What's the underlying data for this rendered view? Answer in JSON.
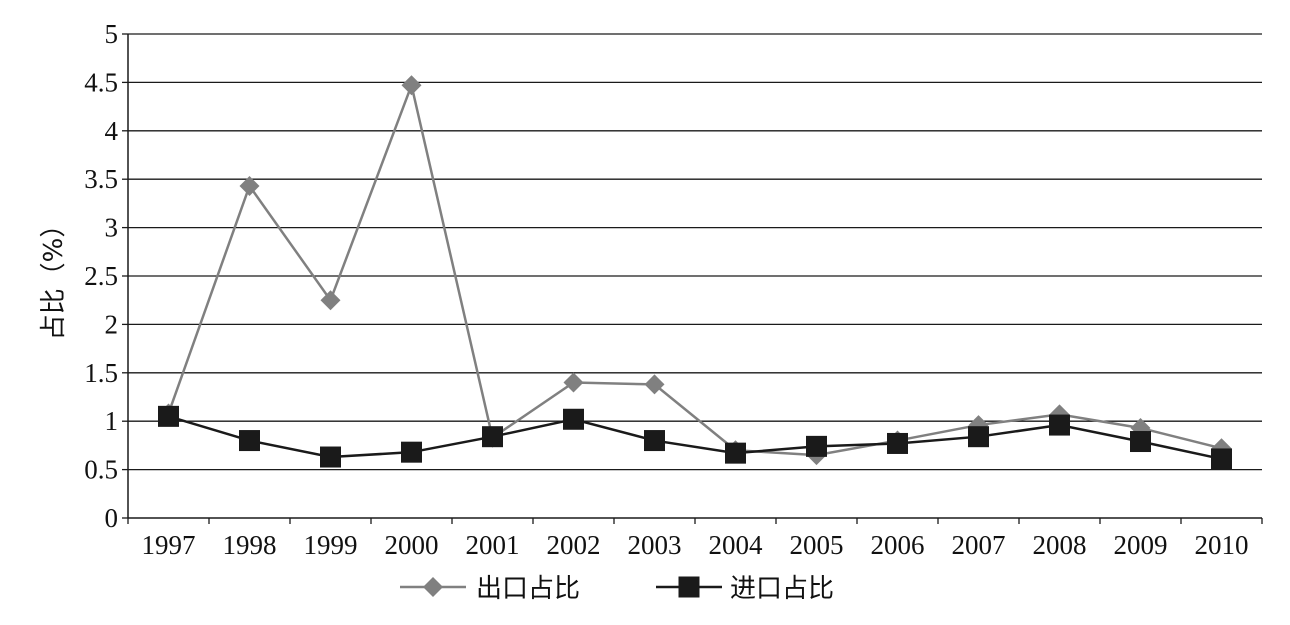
{
  "chart_data": {
    "type": "line",
    "x": [
      "1997",
      "1998",
      "1999",
      "2000",
      "2001",
      "2002",
      "2003",
      "2004",
      "2005",
      "2006",
      "2007",
      "2008",
      "2009",
      "2010"
    ],
    "ylabel": "占比（%）",
    "ylim": [
      0,
      5
    ],
    "yticks": [
      "0",
      "0.5",
      "1",
      "1.5",
      "2",
      "2.5",
      "3",
      "3.5",
      "4",
      "4.5",
      "5"
    ],
    "grid": "horizontal",
    "legend_position": "bottom",
    "series": [
      {
        "name": "出口占比",
        "marker": "diamond",
        "color": "#808080",
        "values": [
          1.08,
          3.43,
          2.25,
          4.47,
          0.83,
          1.4,
          1.38,
          0.7,
          0.65,
          0.8,
          0.96,
          1.07,
          0.93,
          0.72
        ]
      },
      {
        "name": "进口占比",
        "marker": "square",
        "color": "#1a1a1a",
        "values": [
          1.05,
          0.8,
          0.63,
          0.68,
          0.84,
          1.02,
          0.8,
          0.67,
          0.74,
          0.77,
          0.84,
          0.96,
          0.79,
          0.61
        ]
      }
    ]
  }
}
